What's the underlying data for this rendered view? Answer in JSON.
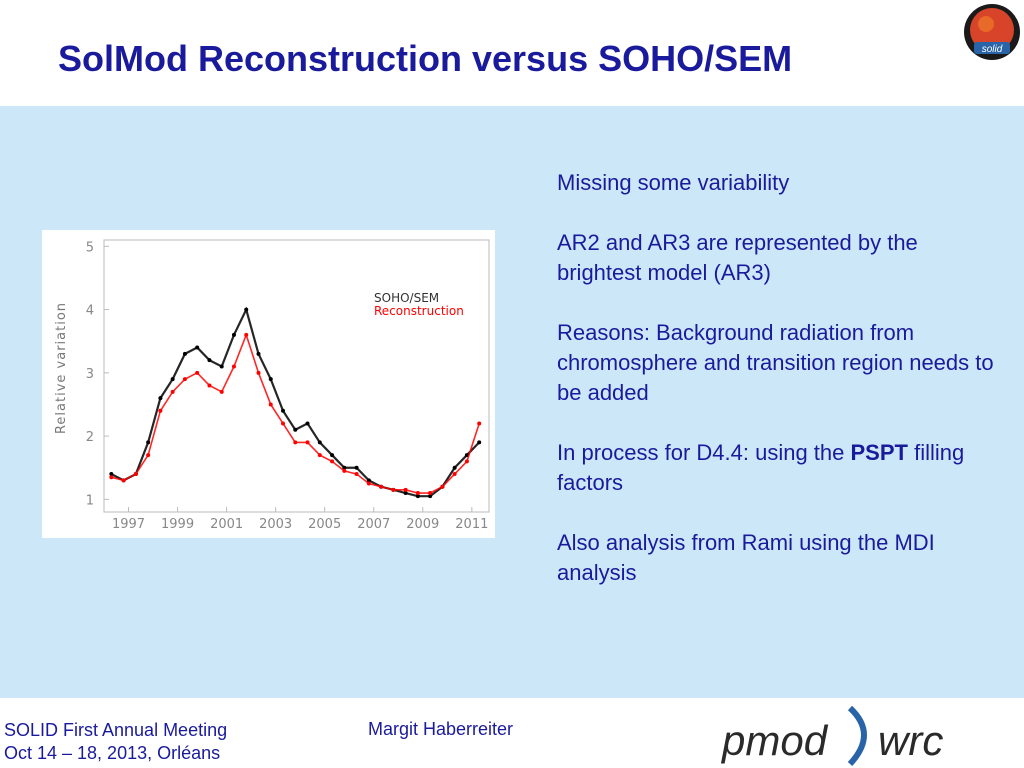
{
  "slide": {
    "title": "SolMod Reconstruction versus SOHO/SEM",
    "logo_badge": "solid",
    "bullets": {
      "b1": "Missing some variability",
      "b2": "AR2 and AR3 are represented by the brightest model (AR3)",
      "b3": "Reasons: Background radiation from chromosphere and transition region needs to be added",
      "b4_pre": "In process for D4.4: using the ",
      "b4_bold": "PSPT",
      "b4_post": " filling factors",
      "b5": "Also analysis from Rami using the MDI analysis"
    },
    "footer": {
      "meeting": "SOLID First Annual Meeting",
      "dates": "Oct 14 – 18, 2013, Orléans",
      "author": "Margit Haberreiter",
      "logo_left": "pmod",
      "logo_right": "wrc"
    },
    "colors": {
      "title": "#1a1a9c",
      "panel": "#cce8f8",
      "sem": "#000000",
      "recon": "#ff0000"
    }
  },
  "chart_data": {
    "type": "scatter",
    "ylabel": "Relative variation",
    "xlabel": "",
    "ylim": [
      0.8,
      5.1
    ],
    "xlim": [
      1996.0,
      2011.7
    ],
    "yticks": [
      "1",
      "2",
      "3",
      "4",
      "5"
    ],
    "xticks": [
      "1997",
      "1999",
      "2001",
      "2003",
      "2005",
      "2007",
      "2009",
      "2011"
    ],
    "legend_position": "top-right",
    "series": [
      {
        "name": "SOHO/SEM",
        "color": "#000000",
        "x": [
          1996.3,
          1996.8,
          1997.3,
          1997.8,
          1998.3,
          1998.8,
          1999.3,
          1999.8,
          2000.3,
          2000.8,
          2001.3,
          2001.8,
          2002.3,
          2002.8,
          2003.3,
          2003.8,
          2004.3,
          2004.8,
          2005.3,
          2005.8,
          2006.3,
          2006.8,
          2007.3,
          2007.8,
          2008.3,
          2008.8,
          2009.3,
          2009.8,
          2010.3,
          2010.8,
          2011.3
        ],
        "values": [
          1.4,
          1.3,
          1.4,
          1.9,
          2.6,
          2.9,
          3.3,
          3.4,
          3.2,
          3.1,
          3.6,
          4.0,
          3.3,
          2.9,
          2.4,
          2.1,
          2.2,
          1.9,
          1.7,
          1.5,
          1.5,
          1.3,
          1.2,
          1.15,
          1.1,
          1.05,
          1.05,
          1.2,
          1.5,
          1.7,
          1.9
        ]
      },
      {
        "name": "Reconstruction",
        "color": "#ff0000",
        "x": [
          1996.3,
          1996.8,
          1997.3,
          1997.8,
          1998.3,
          1998.8,
          1999.3,
          1999.8,
          2000.3,
          2000.8,
          2001.3,
          2001.8,
          2002.3,
          2002.8,
          2003.3,
          2003.8,
          2004.3,
          2004.8,
          2005.3,
          2005.8,
          2006.3,
          2006.8,
          2007.3,
          2007.8,
          2008.3,
          2008.8,
          2009.3,
          2009.8,
          2010.3,
          2010.8,
          2011.3
        ],
        "values": [
          1.35,
          1.3,
          1.4,
          1.7,
          2.4,
          2.7,
          2.9,
          3.0,
          2.8,
          2.7,
          3.1,
          3.6,
          3.0,
          2.5,
          2.2,
          1.9,
          1.9,
          1.7,
          1.6,
          1.45,
          1.4,
          1.25,
          1.2,
          1.15,
          1.15,
          1.1,
          1.1,
          1.2,
          1.4,
          1.6,
          2.2
        ]
      }
    ]
  }
}
